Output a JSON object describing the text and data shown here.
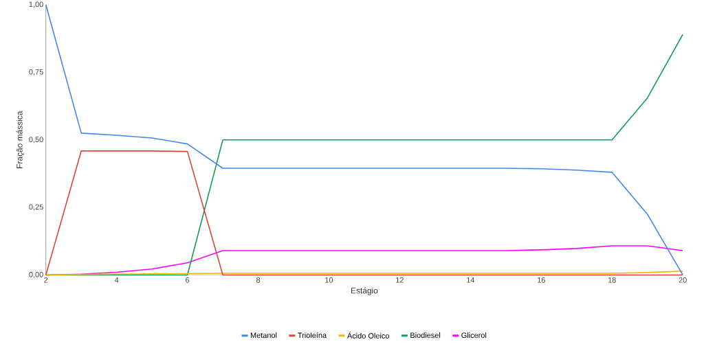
{
  "chart_data": {
    "type": "line",
    "xlabel": "Estágio",
    "ylabel": "Fração mássica",
    "x": [
      2,
      3,
      4,
      5,
      6,
      7,
      8,
      9,
      10,
      11,
      12,
      13,
      14,
      15,
      16,
      17,
      18,
      19,
      20
    ],
    "series": [
      {
        "name": "Metanol",
        "color": "#4285f4",
        "values": [
          1.0,
          0.525,
          0.517,
          0.507,
          0.485,
          0.395,
          0.395,
          0.395,
          0.395,
          0.395,
          0.395,
          0.395,
          0.395,
          0.395,
          0.393,
          0.388,
          0.38,
          0.225,
          0.0
        ]
      },
      {
        "name": "Trioleína",
        "color": "#db4437",
        "values": [
          0,
          0.459,
          0.459,
          0.459,
          0.457,
          0,
          0,
          0,
          0,
          0,
          0,
          0,
          0,
          0,
          0,
          0,
          0,
          0,
          0
        ]
      },
      {
        "name": "Ácido Oleico",
        "color": "#f4b400",
        "values": [
          0,
          0.002,
          0.003,
          0.004,
          0.005,
          0.006,
          0.006,
          0.006,
          0.006,
          0.006,
          0.006,
          0.006,
          0.006,
          0.006,
          0.006,
          0.006,
          0.006,
          0.009,
          0.014
        ]
      },
      {
        "name": "Biodiesel",
        "color": "#0f9d58",
        "values": [
          0,
          0,
          0,
          0,
          0,
          0.5,
          0.5,
          0.5,
          0.5,
          0.5,
          0.5,
          0.5,
          0.5,
          0.5,
          0.5,
          0.5,
          0.5,
          0.655,
          0.89
        ]
      },
      {
        "name": "Glicerol",
        "color": "#ff00ff",
        "values": [
          0,
          0.003,
          0.01,
          0.022,
          0.045,
          0.09,
          0.09,
          0.09,
          0.09,
          0.09,
          0.09,
          0.09,
          0.09,
          0.09,
          0.093,
          0.098,
          0.108,
          0.108,
          0.09
        ]
      }
    ],
    "xlim": [
      2,
      20
    ],
    "xticks": [
      2,
      4,
      6,
      8,
      10,
      12,
      14,
      16,
      18,
      20
    ],
    "ylim": [
      0,
      1
    ],
    "yticks": [
      {
        "value": 0,
        "label": "0,00"
      },
      {
        "value": 0.25,
        "label": "0,25"
      },
      {
        "value": 0.5,
        "label": "0,50"
      },
      {
        "value": 0.75,
        "label": "0,75"
      },
      {
        "value": 1,
        "label": "1,00"
      }
    ],
    "grid": false,
    "legend": "bottom",
    "marker": "none",
    "line_style": "solid"
  }
}
